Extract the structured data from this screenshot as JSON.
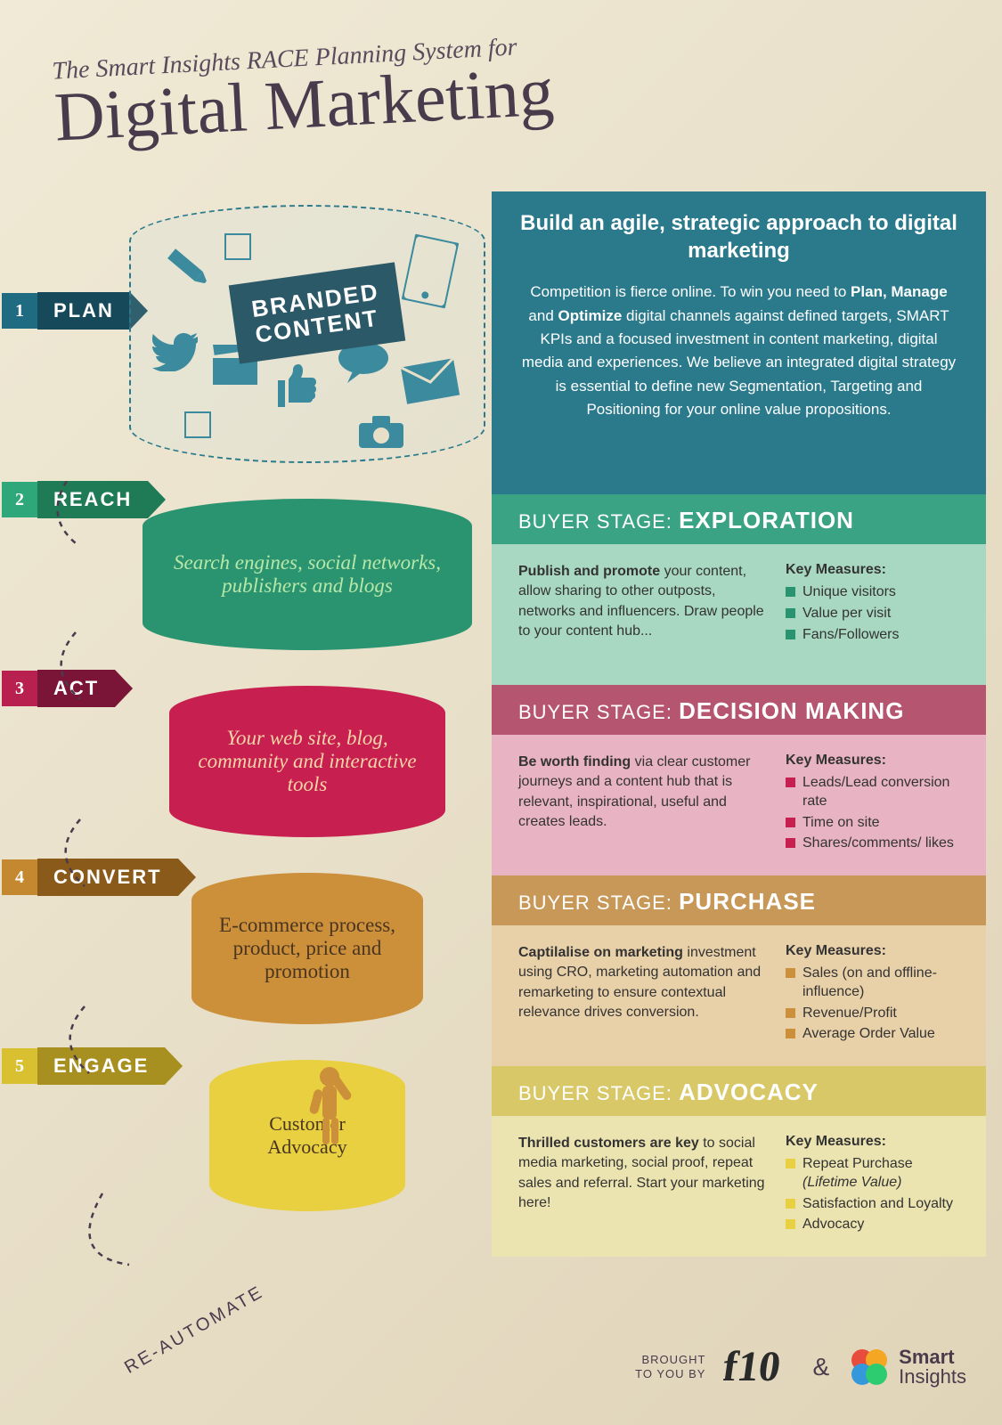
{
  "header": {
    "subtitle": "The Smart Insights RACE Planning System for",
    "title": "Digital Marketing"
  },
  "colors": {
    "plan": {
      "num": "#1f6b82",
      "label": "#164a5a",
      "panel": "#2a7a8c"
    },
    "reach": {
      "num": "#2ea87a",
      "label": "#1f7a56",
      "panel_header": "#3aa383",
      "panel_body": "#a8d8c2",
      "funnel": "#2a9370",
      "bullet": "#2a9370"
    },
    "act": {
      "num": "#b82050",
      "label": "#7a1538",
      "panel_header": "#b55570",
      "panel_body": "#e8b3c2",
      "funnel": "#c72050",
      "bullet": "#c72050"
    },
    "convert": {
      "num": "#c48830",
      "label": "#8a5a1a",
      "panel_header": "#c89858",
      "panel_body": "#e8d0a8",
      "funnel": "#cc8f3a",
      "bullet": "#cc8f3a"
    },
    "engage": {
      "num": "#d8c030",
      "label": "#a89020",
      "panel_header": "#d8c868",
      "panel_body": "#ece4b0",
      "funnel": "#e8d040",
      "bullet": "#e8d040"
    }
  },
  "levels": [
    {
      "num": "1",
      "label": "PLAN"
    },
    {
      "num": "2",
      "label": "REACH"
    },
    {
      "num": "3",
      "label": "ACT"
    },
    {
      "num": "4",
      "label": "CONVERT"
    },
    {
      "num": "5",
      "label": "ENGAGE"
    }
  ],
  "branded": "BRANDED\nCONTENT",
  "plan_panel": {
    "title": "Build an agile, strategic approach to digital marketing",
    "body": "Competition is fierce online. To win you need to Plan, Manage and Optimize digital channels against defined targets, SMART KPIs and a focused investment in content marketing, digital media and experiences. We believe an integrated digital strategy is essential to define new Segmentation, Targeting and Positioning for your online value propositions."
  },
  "stages": [
    {
      "funnel_text": "Search engines, social networks, publishers and blogs",
      "buyer_label": "BUYER STAGE:",
      "buyer_stage": "EXPLORATION",
      "detail": "Publish and promote your content, allow sharing to other outposts, networks and influencers. Draw people to your content hub...",
      "km_title": "Key Measures:",
      "measures": [
        "Unique visitors",
        "Value per visit",
        "Fans/Followers"
      ]
    },
    {
      "funnel_text": "Your web site, blog, community and interactive tools",
      "buyer_label": "BUYER STAGE:",
      "buyer_stage": "DECISION MAKING",
      "detail": "Be worth finding via clear customer journeys and a content hub that is relevant, inspirational, useful and creates leads.",
      "km_title": "Key Measures:",
      "measures": [
        "Leads/Lead conversion rate",
        "Time on site",
        "Shares/comments/ likes"
      ]
    },
    {
      "funnel_text": "E-commerce process, product, price and promotion",
      "buyer_label": "BUYER STAGE:",
      "buyer_stage": "PURCHASE",
      "detail": "Captilalise on marketing investment using CRO, marketing automation and remarketing to ensure contextual relevance drives conversion.",
      "km_title": "Key Measures:",
      "measures": [
        "Sales (on and offline-influence)",
        "Revenue/Profit",
        "Average Order Value"
      ]
    },
    {
      "funnel_text": "Customer Advocacy",
      "buyer_label": "BUYER STAGE:",
      "buyer_stage": "ADVOCACY",
      "detail": "Thrilled customers are key to social media marketing, social proof, repeat sales and referral. Start your marketing here!",
      "km_title": "Key Measures:",
      "measures": [
        "Repeat Purchase (Lifetime Value)",
        "Satisfaction and Loyalty",
        "Advocacy"
      ]
    }
  ],
  "reautomate": "RE-AUTOMATE",
  "footer": {
    "brought": "BROUGHT\nTO YOU BY",
    "amp": "&",
    "brand2": "Smart Insights"
  }
}
